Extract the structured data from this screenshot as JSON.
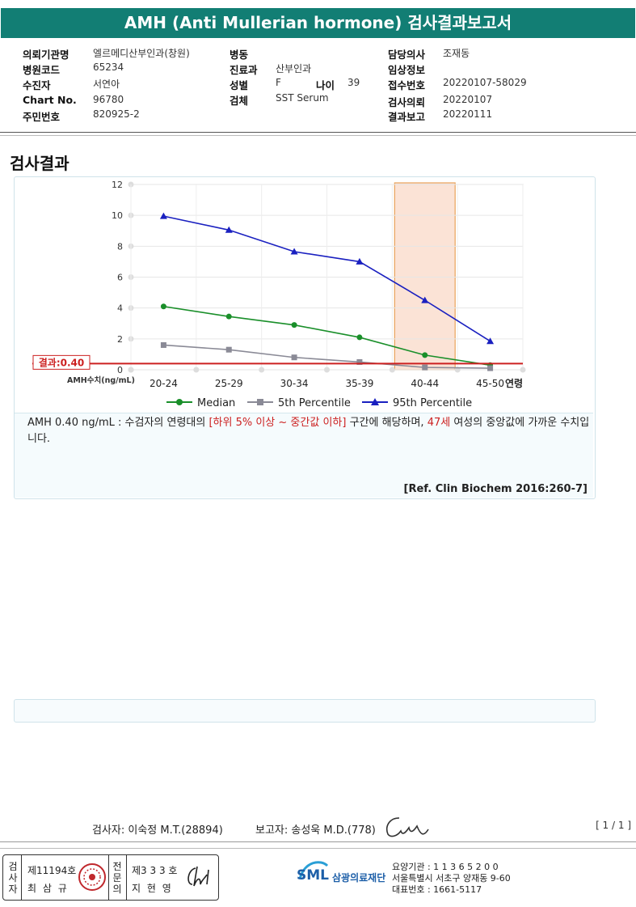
{
  "title": "AMH (Anti Mullerian hormone) 검사결과보고서",
  "info_left": [
    {
      "label": "의뢰기관명",
      "value": "엘르메디산부인과(창원)"
    },
    {
      "label": "병원코드",
      "value": "65234"
    },
    {
      "label": "수진자",
      "value": "서연아"
    },
    {
      "label": "Chart No.",
      "value": "96780"
    },
    {
      "label": "주민번호",
      "value": "820925-2"
    }
  ],
  "info_mid": [
    {
      "label": "병동",
      "value": ""
    },
    {
      "label": "진료과",
      "value": "산부인과"
    },
    {
      "label": "성별",
      "value": "F"
    },
    {
      "label": "검체",
      "value": "SST Serum"
    }
  ],
  "age_label": "나이",
  "age_value": "39",
  "info_right": [
    {
      "label": "담당의사",
      "value": "조재동"
    },
    {
      "label": "임상정보",
      "value": ""
    },
    {
      "label": "접수번호",
      "value": "20220107-58029"
    },
    {
      "label": "검사의뢰",
      "value": "20220107"
    },
    {
      "label": "결과보고",
      "value": "20220111"
    }
  ],
  "section_title": "검사결과",
  "chart_data": {
    "type": "line",
    "categories": [
      "20-24",
      "25-29",
      "30-34",
      "35-39",
      "40-44",
      "45-50"
    ],
    "series": [
      {
        "name": "Median",
        "values": [
          4.1,
          3.45,
          2.9,
          2.1,
          0.95,
          0.3
        ],
        "color": "#1a8f2a"
      },
      {
        "name": "5th Percentile",
        "values": [
          1.6,
          1.3,
          0.8,
          0.5,
          0.15,
          0.1
        ],
        "color": "#8a8a96"
      },
      {
        "name": "95th Percentile",
        "values": [
          9.95,
          9.05,
          7.65,
          7.0,
          4.5,
          1.85
        ],
        "color": "#1a20c0"
      }
    ],
    "ylim": [
      0,
      12
    ],
    "yticks": [
      0,
      2,
      4,
      6,
      8,
      10,
      12
    ],
    "xlabel_left": "AMH수치(ng/mL)",
    "xlabel_right": "연령",
    "result_label": "결과:0.40",
    "result_value": 0.4,
    "highlight_category": "40-44",
    "legend_position": "bottom"
  },
  "description": {
    "p1": "AMH  0.40 ng/mL : 수검자의 연령대의 ",
    "r1": "[하위 5% 이상 ~ 중간값 이하]",
    "p2": " 구간에 해당하며, ",
    "r2": "47세",
    "p3": " 여성의 중앙값에 가까운 수치입니다."
  },
  "reference": "[Ref. Clin Biochem 2016:260-7]",
  "tester": "검사자: 이숙정 M.T.(28894)",
  "reporter": "보고자: 송성욱 M.D.(778)",
  "page_num": "[ 1 / 1 ]",
  "stamp": {
    "v1": "검사자",
    "no1": "제11194호",
    "name1": "최 삼 규",
    "v2": "전문의",
    "no2": "제3 3 3 호",
    "name2": "지 현 영"
  },
  "logo_text": "SML",
  "org_name": "삼광의료재단",
  "footer": {
    "l1": "요양기관 : 1 1 3 6 5 2 0 0",
    "l2": "서울특별시 서초구 양재동 9-60",
    "l3": "대표번호 : 1661-5117"
  }
}
